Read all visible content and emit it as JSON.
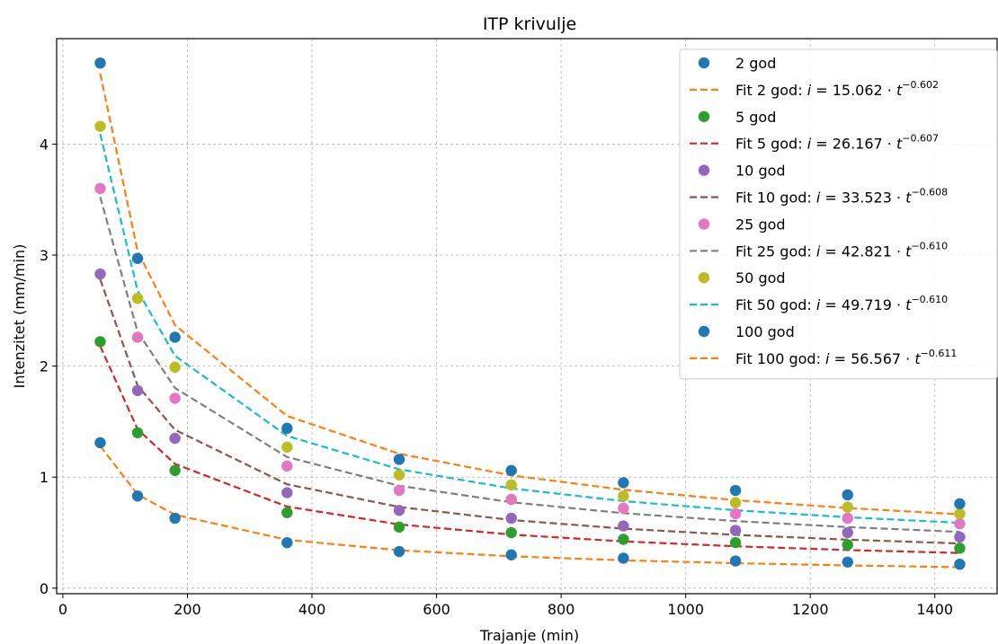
{
  "chart_data": {
    "type": "scatter",
    "title": "ITP krivulje",
    "xlabel": "Trajanje (min)",
    "ylabel": "Intenzitet (mm/min)",
    "xlim": [
      -10,
      1500
    ],
    "ylim": [
      -0.05,
      4.95
    ],
    "xticks": [
      0,
      200,
      400,
      600,
      800,
      1000,
      1200,
      1400
    ],
    "yticks": [
      0,
      1,
      2,
      3,
      4
    ],
    "grid": true,
    "legend_position": "top-right",
    "x": [
      60,
      120,
      180,
      360,
      540,
      720,
      900,
      1080,
      1260,
      1440
    ],
    "series": [
      {
        "name": "2 god",
        "kind": "points",
        "color": "#1f77b4",
        "values": [
          1.31,
          0.83,
          0.63,
          0.41,
          0.33,
          0.3,
          0.27,
          0.245,
          0.235,
          0.215
        ]
      },
      {
        "name": "Fit 2 god",
        "kind": "fit",
        "color": "#ff7f0e",
        "a": 15.062,
        "b": -0.602,
        "legend_prefix": "Fit 2 god: ",
        "legend_a": "15.062",
        "legend_exp": "−0.602"
      },
      {
        "name": "5 god",
        "kind": "points",
        "color": "#2ca02c",
        "values": [
          2.22,
          1.4,
          1.06,
          0.68,
          0.55,
          0.5,
          0.44,
          0.41,
          0.39,
          0.36
        ]
      },
      {
        "name": "Fit 5 god",
        "kind": "fit",
        "color": "#d62728",
        "a": 26.167,
        "b": -0.607,
        "legend_prefix": "Fit 5 god: ",
        "legend_a": "26.167",
        "legend_exp": "−0.607"
      },
      {
        "name": "10 god",
        "kind": "points",
        "color": "#9467bd",
        "values": [
          2.83,
          1.78,
          1.35,
          0.86,
          0.7,
          0.63,
          0.56,
          0.52,
          0.5,
          0.46
        ]
      },
      {
        "name": "Fit 10 god",
        "kind": "fit",
        "color": "#8c564b",
        "a": 33.523,
        "b": -0.608,
        "legend_prefix": "Fit 10 god: ",
        "legend_a": "33.523",
        "legend_exp": "−0.608"
      },
      {
        "name": "25 god",
        "kind": "points",
        "color": "#e377c2",
        "values": [
          3.6,
          2.26,
          1.71,
          1.1,
          0.88,
          0.8,
          0.72,
          0.67,
          0.63,
          0.58
        ]
      },
      {
        "name": "Fit 25 god",
        "kind": "fit",
        "color": "#7f7f7f",
        "a": 42.821,
        "b": -0.61,
        "legend_prefix": "Fit 25 god: ",
        "legend_a": "42.821",
        "legend_exp": "−0.610"
      },
      {
        "name": "50 god",
        "kind": "points",
        "color": "#bcbd22",
        "values": [
          4.16,
          2.61,
          1.99,
          1.27,
          1.02,
          0.93,
          0.83,
          0.77,
          0.73,
          0.67
        ]
      },
      {
        "name": "Fit 50 god",
        "kind": "fit",
        "color": "#17becf",
        "a": 49.719,
        "b": -0.61,
        "legend_prefix": "Fit 50 god: ",
        "legend_a": "49.719",
        "legend_exp": "−0.610"
      },
      {
        "name": "100 god",
        "kind": "points",
        "color": "#1f77b4",
        "values": [
          4.73,
          2.97,
          2.26,
          1.44,
          1.16,
          1.06,
          0.95,
          0.88,
          0.84,
          0.76
        ]
      },
      {
        "name": "Fit 100 god",
        "kind": "fit",
        "color": "#ff7f0e",
        "a": 56.567,
        "b": -0.611,
        "legend_prefix": "Fit 100 god: ",
        "legend_a": "56.567",
        "legend_exp": "−0.611"
      }
    ]
  }
}
